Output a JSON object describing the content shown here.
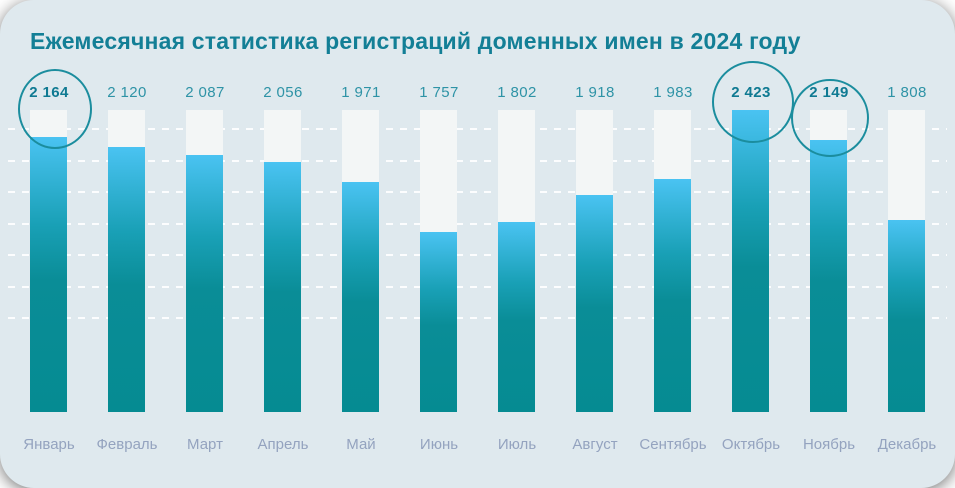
{
  "chart_data": {
    "type": "bar",
    "title": "Ежемесячная статистика регистраций доменных имен в 2024 году",
    "categories": [
      "Январь",
      "Февраль",
      "Март",
      "Апрель",
      "Май",
      "Июнь",
      "Июль",
      "Август",
      "Сентябрь",
      "Октябрь",
      "Ноябрь",
      "Декабрь"
    ],
    "values": [
      2164,
      2120,
      2087,
      2056,
      1971,
      1757,
      1802,
      1918,
      1983,
      2423,
      2149,
      1808
    ],
    "value_labels": [
      "2 164",
      "2 120",
      "2 087",
      "2 056",
      "1 971",
      "1 757",
      "1 802",
      "1 918",
      "1 983",
      "2 423",
      "2 149",
      "1 808"
    ],
    "highlighted_indexes": [
      0,
      9,
      10
    ],
    "highlighted_value_labels": [
      "2 164",
      "2 423",
      "2 149"
    ],
    "xlabel": "",
    "ylabel": "",
    "legend_position": "none",
    "grid": {
      "visible": true,
      "style": "dashed",
      "line_count": 7,
      "color": "rgba(255,255,255,0.92)"
    },
    "scale": {
      "value_at_zero_height": 990,
      "value_at_full_height": 2279,
      "clamp_to_track": true
    },
    "colors": {
      "page_background": "#ffffff",
      "card_background": "#dfe9ee",
      "bar_track": "#f3f6f6",
      "bar_fill_top": "#4ac3f2",
      "bar_fill_bottom": "#058b92",
      "title_text": "#137f96",
      "value_text": "#2e93a6",
      "value_text_highlight": "#0f7a92",
      "month_text": "#94a3bf",
      "highlight_circle_stroke": "#1b8d9e"
    }
  }
}
